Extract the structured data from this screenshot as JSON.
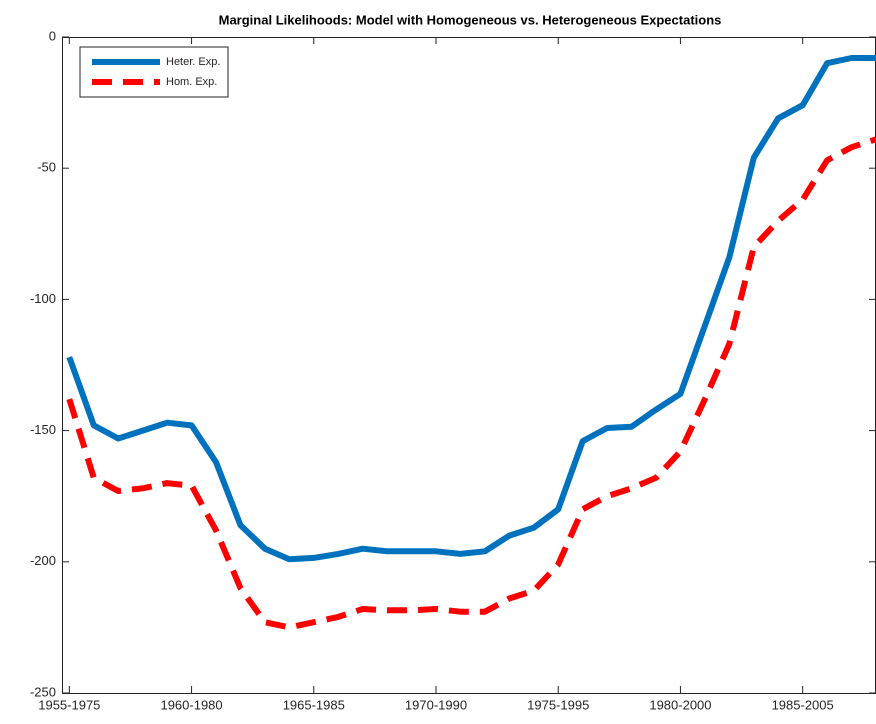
{
  "chart_data": {
    "type": "line",
    "title": "Marginal Likelihoods: Model with Homogeneous vs. Heterogeneous Expectations",
    "x": [
      1955,
      1956,
      1957,
      1958,
      1959,
      1960,
      1961,
      1962,
      1963,
      1964,
      1965,
      1966,
      1967,
      1968,
      1969,
      1970,
      1971,
      1972,
      1973,
      1974,
      1975,
      1976,
      1977,
      1978,
      1979,
      1980,
      1981,
      1982,
      1983,
      1984,
      1985,
      1986,
      1987,
      1988
    ],
    "series": [
      {
        "name": "Heter. Exp.",
        "color": "#0072bd",
        "dash": false,
        "values": [
          -122,
          -148,
          -153,
          -150,
          -147,
          -148,
          -162,
          -186,
          -195,
          -199,
          -198.5,
          -197,
          -195,
          -196,
          -196,
          -196,
          -197,
          -196,
          -190,
          -187,
          -180,
          -154,
          -149,
          -148.5,
          -142,
          -136,
          -110,
          -84,
          -46,
          -31,
          -26,
          -10,
          -8,
          -8
        ]
      },
      {
        "name": "Hom. Exp.",
        "color": "#ff0000",
        "dash": true,
        "values": [
          -138,
          -168,
          -173,
          -172,
          -170,
          -171,
          -188,
          -210,
          -223,
          -225,
          -223,
          -221,
          -218,
          -218.5,
          -218.5,
          -218,
          -219,
          -219,
          -214,
          -211,
          -201,
          -180,
          -175,
          -172,
          -168,
          -158,
          -138,
          -117,
          -80,
          -70,
          -62,
          -47,
          -42,
          -39
        ]
      }
    ],
    "xlim": [
      1954.7,
      1988
    ],
    "xticks": [
      {
        "value": 1955,
        "label": "1955-1975"
      },
      {
        "value": 1960,
        "label": "1960-1980"
      },
      {
        "value": 1965,
        "label": "1965-1985"
      },
      {
        "value": 1970,
        "label": "1970-1990"
      },
      {
        "value": 1975,
        "label": "1975-1995"
      },
      {
        "value": 1980,
        "label": "1980-2000"
      },
      {
        "value": 1985,
        "label": "1985-2005"
      }
    ],
    "ylim": [
      -250,
      0
    ],
    "yticks": [
      -250,
      -200,
      -150,
      -100,
      -50,
      0
    ],
    "legend": "top-left"
  }
}
